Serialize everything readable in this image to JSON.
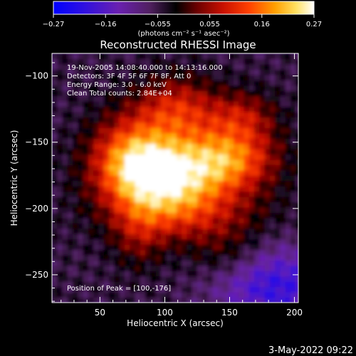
{
  "chart_data": {
    "type": "heatmap",
    "title": "Reconstructed RHESSI Image",
    "xlabel": "Heliocentric X (arcsec)",
    "ylabel": "Heliocentric Y (arcsec)",
    "xlim": [
      13,
      203
    ],
    "ylim": [
      -271,
      -83
    ],
    "x_ticks": [
      50,
      100,
      150,
      200
    ],
    "y_ticks": [
      -100,
      -150,
      -200,
      -250
    ],
    "colorbar": {
      "min": -0.27,
      "max": 0.27,
      "tick_labels": [
        "-0.27",
        "-0.16",
        "-0.055",
        "0.055",
        "0.16",
        "0.27"
      ],
      "unit_label": "(photons cm⁻² s⁻¹ asec⁻²)"
    },
    "annotations": [
      "19-Nov-2005 14:08:40.000 to 14:13:16.000",
      "Detectors: 3F 4F 5F 6F 7F 8F, Att 0",
      "Energy Range: 3.0 - 6.0 keV",
      "Clean     Total counts: 2.84E+04"
    ],
    "peak_label": "Position of Peak = [100,-176]",
    "peak": {
      "x": 100,
      "y": -176
    },
    "sources": [
      {
        "x": 100,
        "y": -176,
        "sx": 30,
        "sy": 20,
        "amp": 0.27
      },
      {
        "x": 150,
        "y": -162,
        "sx": 25,
        "sy": 17,
        "amp": 0.2
      },
      {
        "x": 75,
        "y": -160,
        "sx": 22,
        "sy": 22,
        "amp": 0.17
      },
      {
        "x": 110,
        "y": -125,
        "sx": 22,
        "sy": 17,
        "amp": 0.14
      },
      {
        "x": 160,
        "y": -130,
        "sx": 18,
        "sy": 13,
        "amp": 0.1
      },
      {
        "x": 120,
        "y": -205,
        "sx": 40,
        "sy": 15,
        "amp": 0.1
      },
      {
        "x": 80,
        "y": -220,
        "sx": 14,
        "sy": 18,
        "amp": 0.07
      },
      {
        "x": 150,
        "y": -235,
        "sx": 22,
        "sy": 14,
        "amp": 0.06
      }
    ],
    "background_level": -0.05,
    "cold_region": {
      "x": 185,
      "y": -258,
      "sx": 32,
      "sy": 22,
      "amp": -0.15
    }
  },
  "footer": {
    "timestamp": "3-May-2022 09:22"
  }
}
